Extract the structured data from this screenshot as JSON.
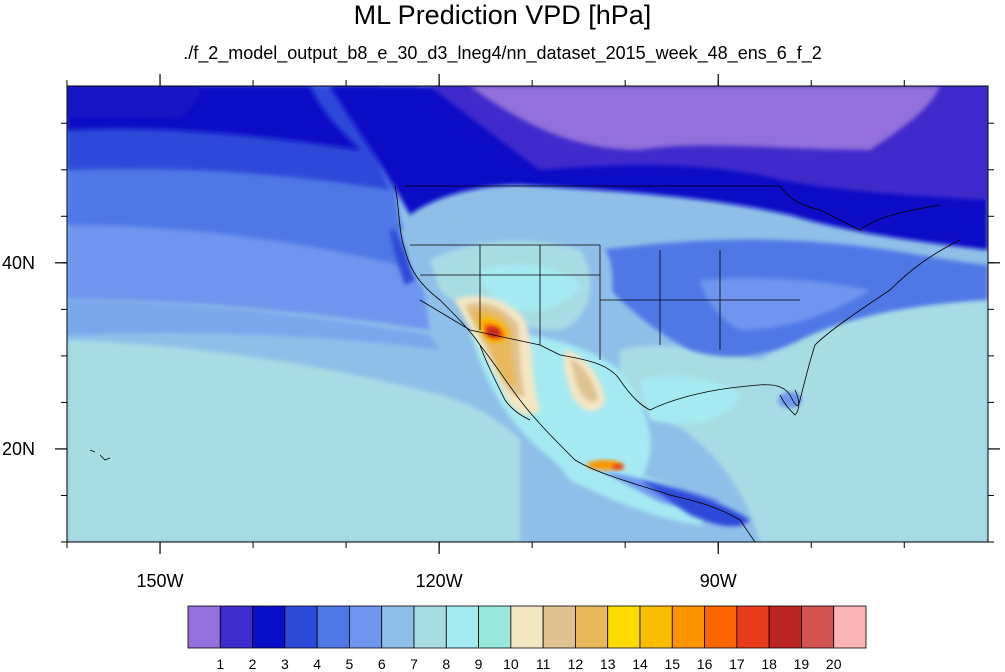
{
  "title": "ML Prediction VPD [hPa]",
  "subtitle": "./f_2_model_output_b8_e_30_d3_lneg4/nn_dataset_2015_week_48_ens_6_f_2",
  "map": {
    "extent": {
      "lon_min": -160,
      "lon_max": -61,
      "lat_min": 10,
      "lat_max": 59
    },
    "lon_ticks": [
      {
        "value": -150,
        "label": "150W"
      },
      {
        "value": -120,
        "label": "120W"
      },
      {
        "value": -90,
        "label": "90W"
      }
    ],
    "lat_ticks": [
      {
        "value": 40,
        "label": "40N"
      },
      {
        "value": 20,
        "label": "20N"
      }
    ]
  },
  "colorbar": {
    "colors": [
      "#9370db",
      "#3f2ccc",
      "#0a10c8",
      "#2e4ad9",
      "#4f78e6",
      "#6f95ee",
      "#8fbfe8",
      "#a8dce4",
      "#a5eaf2",
      "#98e8dc",
      "#f3e6c2",
      "#dfc291",
      "#e8b85a",
      "#fddb00",
      "#fbbd00",
      "#fb9400",
      "#fb6500",
      "#e83c1a",
      "#bb2523",
      "#d35353",
      "#fbb4b4"
    ],
    "labels": [
      "1",
      "2",
      "3",
      "4",
      "5",
      "6",
      "7",
      "8",
      "9",
      "10",
      "11",
      "12",
      "13",
      "14",
      "15",
      "16",
      "17",
      "18",
      "19",
      "20"
    ]
  }
}
